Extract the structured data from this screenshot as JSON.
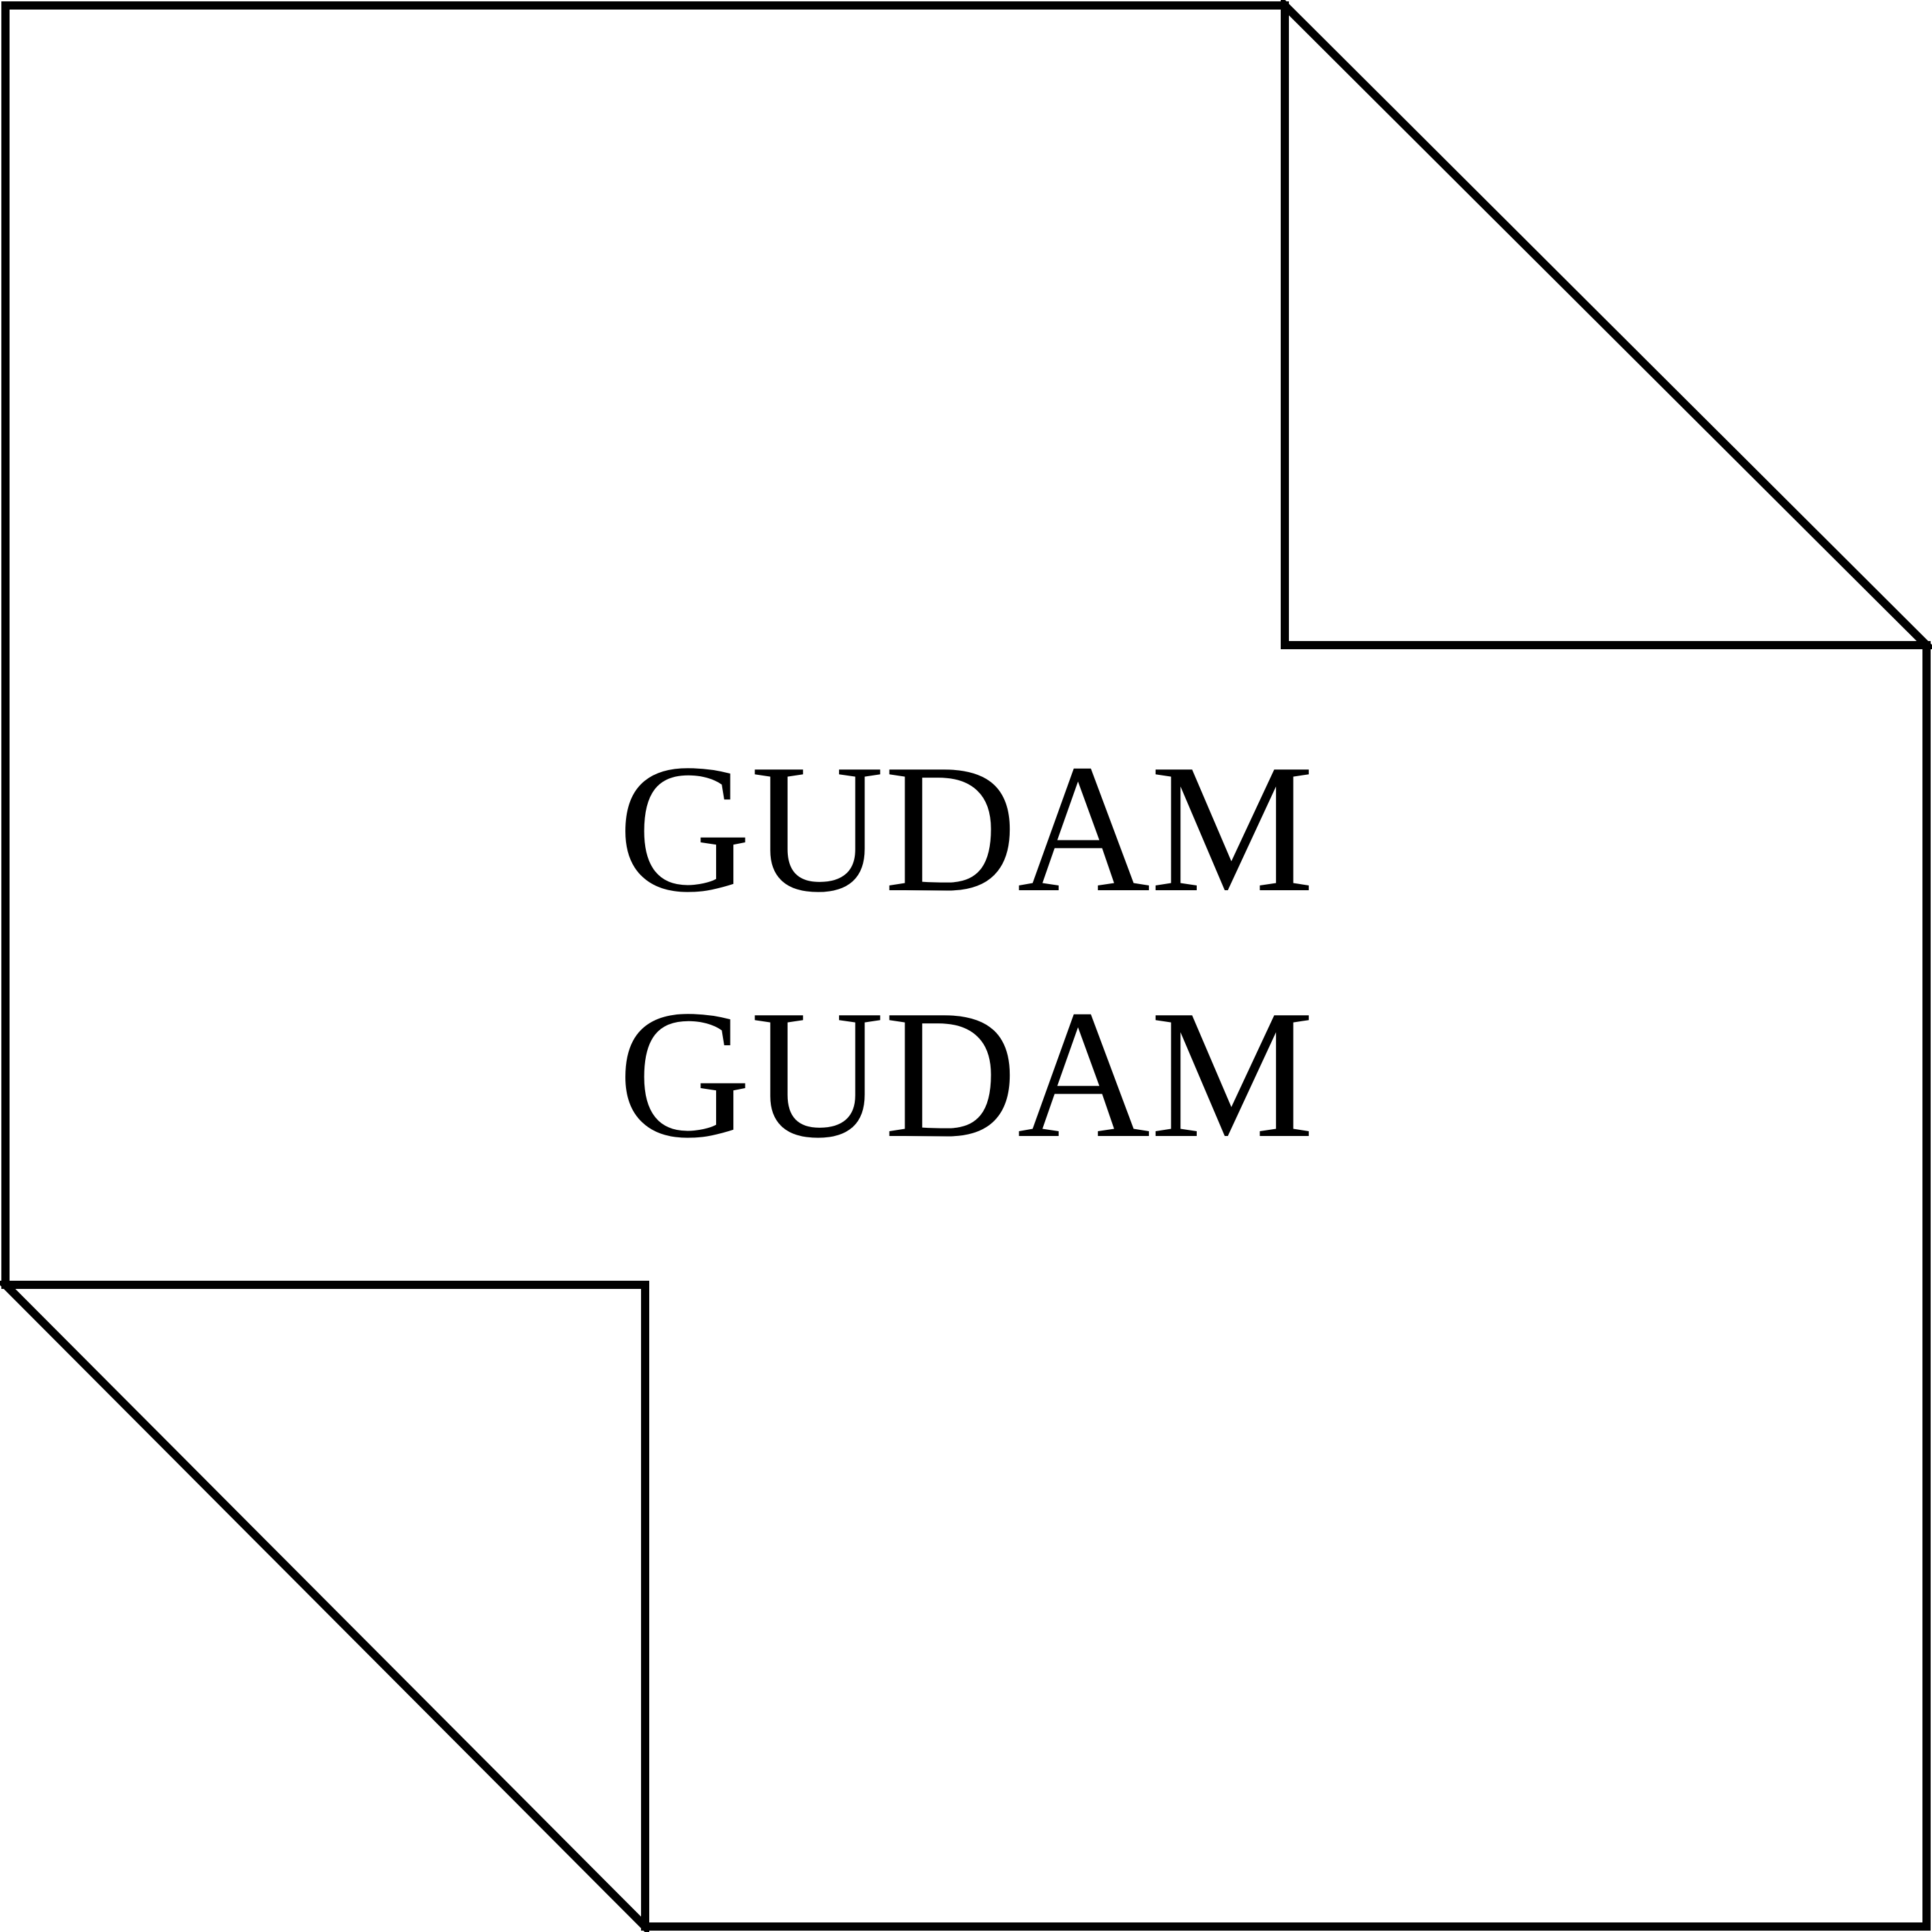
{
  "labels": {
    "line_1": "GUDAM",
    "line_2": "GUDAM"
  },
  "colors": {
    "stroke": "#000000",
    "background": "#ffffff"
  }
}
